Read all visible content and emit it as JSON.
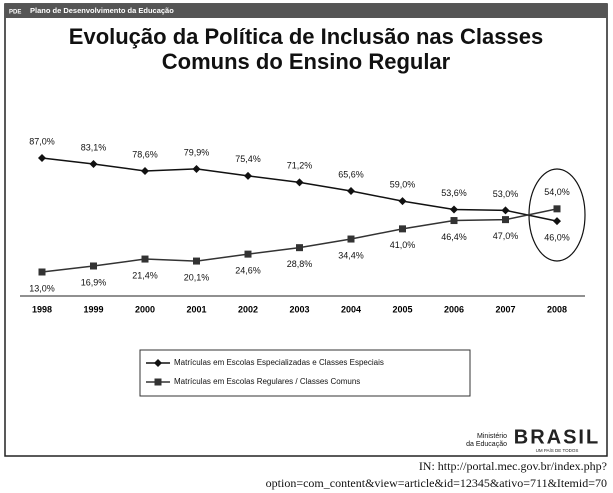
{
  "header": {
    "logo": "PDE",
    "title": "Plano de Desenvolvimento da Educação"
  },
  "chart_data": {
    "type": "line",
    "title": [
      "Evolução da Política de Inclusão nas Classes",
      "Comuns do Ensino Regular"
    ],
    "categories": [
      "1998",
      "1999",
      "2000",
      "2001",
      "2002",
      "2003",
      "2004",
      "2005",
      "2006",
      "2007",
      "2008"
    ],
    "series": [
      {
        "name": "Matrículas em Escolas Especializadas e Classes Especiais",
        "color": "#111111",
        "marker": "diamond",
        "values": [
          87.0,
          83.1,
          78.6,
          79.9,
          75.4,
          71.2,
          65.6,
          59.0,
          53.6,
          53.0,
          46.0
        ],
        "value_labels": [
          "87,0%",
          "83,1%",
          "78,6%",
          "79,9%",
          "75,4%",
          "71,2%",
          "65,6%",
          "59,0%",
          "53,6%",
          "53,0%",
          "46,0%"
        ]
      },
      {
        "name": "Matrículas em Escolas Regulares / Classes Comuns",
        "color": "#333333",
        "marker": "square",
        "values": [
          13.0,
          16.9,
          21.4,
          20.1,
          24.6,
          28.8,
          34.4,
          41.0,
          46.4,
          47.0,
          54.0
        ],
        "value_labels": [
          "13,0%",
          "16,9%",
          "21,4%",
          "20,1%",
          "24,6%",
          "28,8%",
          "34,4%",
          "41,0%",
          "46,4%",
          "47,0%",
          "54,0%"
        ]
      }
    ]
  },
  "footer": {
    "ministry": [
      "Ministério",
      "da Educação"
    ],
    "brand": "BRASIL",
    "slogan": "UM PAÍS DE TODOS"
  },
  "caption": [
    "IN: http://portal.mec.gov.br/index.php?",
    "option=com_content&view=article&id=12345&ativo=711&Itemid=70"
  ]
}
